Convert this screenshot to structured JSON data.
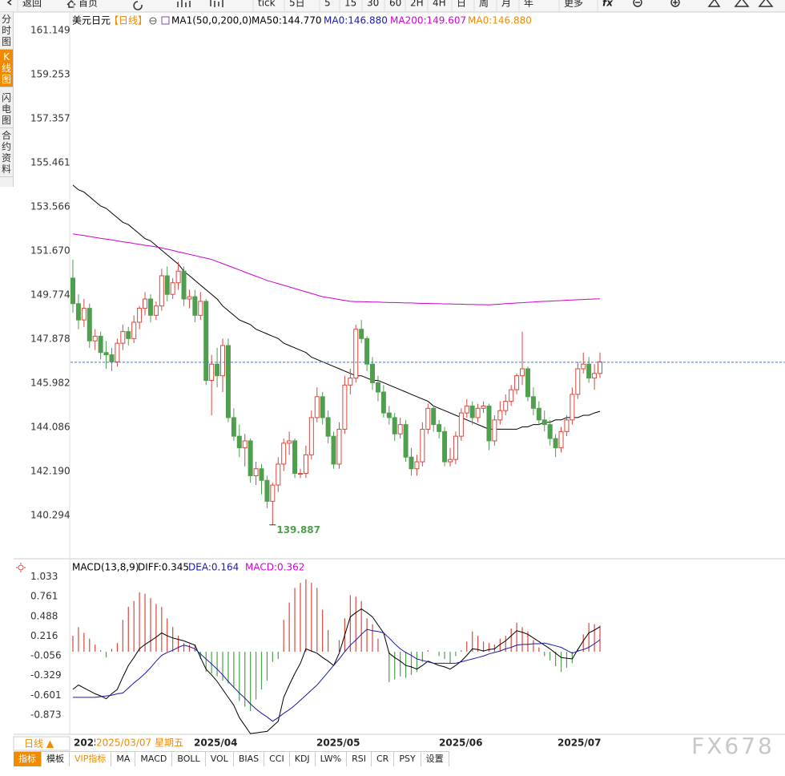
{
  "toolbar": [
    "返回",
    "首页",
    "tick",
    "5日",
    "5",
    "15",
    "30",
    "60",
    "2H",
    "4H",
    "日",
    "周",
    "月",
    "年",
    "更多",
    "fx"
  ],
  "sidebar": [
    "分时图",
    "K线图",
    "闪电图",
    "合约资料"
  ],
  "chart_data": {
    "type": "candlestick",
    "title": "美元日元",
    "period": "【日线】",
    "indicator": "MA1(50,0,200,0)",
    "legend": [
      {
        "label": "MA50:144.770",
        "color": "#000000"
      },
      {
        "label": "MA0:146.880",
        "color": "#1a1aa6"
      },
      {
        "label": "MA200:149.607",
        "color": "#d400d4"
      },
      {
        "label": "MA0:146.880",
        "color": "#f08a00"
      }
    ],
    "up_color": "#d9473f",
    "down_color": "#4f9f4f",
    "price_line": 146.88,
    "low_annotation": 139.887,
    "candles": [
      [
        150.5,
        151.3,
        149.0,
        149.4
      ],
      [
        149.4,
        149.8,
        148.3,
        148.7
      ],
      [
        148.7,
        149.6,
        148.4,
        149.2
      ],
      [
        149.2,
        149.4,
        147.5,
        147.8
      ],
      [
        147.8,
        148.3,
        147.4,
        148.0
      ],
      [
        148.0,
        148.2,
        147.0,
        147.3
      ],
      [
        147.3,
        147.8,
        146.6,
        147.2
      ],
      [
        147.2,
        147.5,
        146.5,
        146.9
      ],
      [
        146.9,
        147.9,
        146.7,
        147.7
      ],
      [
        147.7,
        148.5,
        147.4,
        148.2
      ],
      [
        148.2,
        148.4,
        147.6,
        147.9
      ],
      [
        147.9,
        148.9,
        147.7,
        148.6
      ],
      [
        148.6,
        149.3,
        148.3,
        149.2
      ],
      [
        149.2,
        149.9,
        148.9,
        149.6
      ],
      [
        149.6,
        149.8,
        148.6,
        148.9
      ],
      [
        148.9,
        149.5,
        148.7,
        149.3
      ],
      [
        149.3,
        150.9,
        149.1,
        150.6
      ],
      [
        150.6,
        151.0,
        149.5,
        149.8
      ],
      [
        149.8,
        150.5,
        149.6,
        150.3
      ],
      [
        150.3,
        151.2,
        150.0,
        150.8
      ],
      [
        150.8,
        151.0,
        149.3,
        149.6
      ],
      [
        149.6,
        150.0,
        149.2,
        149.7
      ],
      [
        149.7,
        150.0,
        148.6,
        148.9
      ],
      [
        148.9,
        149.9,
        148.7,
        149.5
      ],
      [
        149.5,
        149.6,
        145.9,
        146.1
      ],
      [
        146.1,
        147.2,
        144.6,
        146.8
      ],
      [
        146.8,
        147.5,
        145.8,
        146.3
      ],
      [
        146.3,
        147.9,
        145.6,
        147.6
      ],
      [
        147.6,
        147.9,
        144.3,
        144.5
      ],
      [
        144.5,
        144.9,
        143.5,
        143.7
      ],
      [
        143.7,
        144.2,
        142.8,
        143.2
      ],
      [
        143.2,
        143.8,
        142.4,
        143.5
      ],
      [
        143.5,
        143.6,
        141.7,
        142.0
      ],
      [
        142.0,
        142.6,
        141.6,
        142.3
      ],
      [
        142.3,
        142.5,
        141.2,
        141.8
      ],
      [
        141.8,
        142.0,
        140.6,
        140.9
      ],
      [
        140.9,
        141.7,
        139.887,
        141.6
      ],
      [
        141.6,
        142.8,
        141.3,
        142.5
      ],
      [
        142.5,
        143.6,
        142.2,
        143.4
      ],
      [
        143.4,
        143.9,
        142.9,
        143.5
      ],
      [
        143.5,
        143.6,
        141.9,
        142.1
      ],
      [
        142.1,
        142.3,
        141.9,
        142.1
      ],
      [
        142.1,
        143.3,
        141.9,
        142.9
      ],
      [
        142.9,
        144.8,
        142.7,
        144.5
      ],
      [
        144.5,
        145.8,
        144.3,
        145.4
      ],
      [
        145.4,
        145.6,
        144.2,
        144.5
      ],
      [
        144.5,
        144.8,
        143.4,
        143.7
      ],
      [
        143.7,
        143.9,
        142.3,
        142.5
      ],
      [
        142.5,
        144.3,
        142.3,
        144.0
      ],
      [
        144.0,
        146.3,
        143.8,
        145.9
      ],
      [
        145.9,
        146.6,
        145.5,
        146.2
      ],
      [
        146.2,
        148.5,
        146.0,
        148.3
      ],
      [
        148.3,
        148.7,
        147.7,
        147.9
      ],
      [
        147.9,
        148.0,
        146.5,
        146.8
      ],
      [
        146.8,
        147.1,
        145.7,
        146.0
      ],
      [
        146.0,
        146.3,
        145.2,
        145.6
      ],
      [
        145.6,
        145.9,
        144.5,
        144.7
      ],
      [
        144.7,
        145.0,
        144.2,
        144.5
      ],
      [
        144.5,
        144.7,
        143.5,
        143.8
      ],
      [
        143.8,
        144.5,
        143.6,
        144.2
      ],
      [
        144.2,
        144.4,
        142.6,
        142.8
      ],
      [
        142.8,
        143.2,
        142.0,
        142.3
      ],
      [
        142.3,
        142.9,
        142.0,
        142.6
      ],
      [
        142.6,
        144.3,
        142.4,
        144.0
      ],
      [
        144.0,
        145.1,
        143.8,
        144.9
      ],
      [
        144.9,
        145.0,
        143.9,
        144.2
      ],
      [
        144.2,
        144.4,
        143.6,
        143.9
      ],
      [
        143.9,
        144.1,
        142.4,
        142.6
      ],
      [
        142.6,
        143.2,
        142.4,
        142.7
      ],
      [
        142.7,
        143.9,
        142.5,
        143.7
      ],
      [
        143.7,
        144.9,
        143.5,
        144.7
      ],
      [
        144.7,
        145.3,
        144.5,
        145.0
      ],
      [
        145.0,
        145.2,
        144.2,
        144.5
      ],
      [
        144.5,
        145.1,
        144.3,
        144.9
      ],
      [
        144.9,
        145.2,
        144.7,
        145.0
      ],
      [
        145.0,
        145.1,
        143.1,
        143.5
      ],
      [
        143.5,
        144.6,
        143.3,
        144.4
      ],
      [
        144.4,
        145.2,
        144.2,
        144.8
      ],
      [
        144.8,
        145.5,
        144.6,
        145.2
      ],
      [
        145.2,
        145.9,
        145.0,
        145.7
      ],
      [
        145.7,
        146.4,
        145.5,
        146.3
      ],
      [
        146.3,
        148.2,
        145.9,
        146.6
      ],
      [
        146.6,
        146.7,
        145.2,
        145.4
      ],
      [
        145.4,
        145.8,
        144.6,
        144.9
      ],
      [
        144.9,
        145.2,
        144.2,
        144.4
      ],
      [
        144.4,
        144.8,
        143.9,
        144.2
      ],
      [
        144.2,
        144.4,
        143.3,
        143.6
      ],
      [
        143.6,
        143.8,
        142.8,
        143.2
      ],
      [
        143.2,
        144.1,
        143.0,
        143.9
      ],
      [
        143.9,
        144.6,
        143.7,
        144.4
      ],
      [
        144.4,
        145.8,
        144.2,
        145.5
      ],
      [
        145.5,
        146.9,
        145.3,
        146.6
      ],
      [
        146.6,
        147.3,
        146.4,
        146.8
      ],
      [
        146.8,
        147.1,
        146.0,
        146.2
      ],
      [
        146.2,
        146.8,
        145.7,
        146.4
      ],
      [
        146.4,
        147.3,
        146.2,
        146.9
      ]
    ],
    "series": [
      {
        "name": "MA50",
        "color": "#000000",
        "values": [
          154.5,
          154.3,
          154.2,
          154.0,
          153.8,
          153.6,
          153.5,
          153.3,
          153.1,
          152.9,
          152.8,
          152.6,
          152.4,
          152.2,
          152.1,
          151.9,
          151.7,
          151.5,
          151.3,
          151.1,
          150.8,
          150.6,
          150.4,
          150.2,
          150.0,
          149.8,
          149.6,
          149.3,
          149.1,
          148.9,
          148.7,
          148.6,
          148.5,
          148.3,
          148.2,
          148.1,
          148.0,
          147.9,
          147.7,
          147.6,
          147.5,
          147.4,
          147.3,
          147.1,
          147.0,
          146.9,
          146.8,
          146.7,
          146.6,
          146.5,
          146.4,
          146.3,
          146.3,
          146.2,
          146.1,
          146.1,
          146.0,
          145.9,
          145.8,
          145.7,
          145.6,
          145.5,
          145.4,
          145.3,
          145.2,
          145.0,
          144.9,
          144.8,
          144.7,
          144.6,
          144.5,
          144.4,
          144.3,
          144.2,
          144.1,
          144.0,
          144.0,
          144.0,
          144.0,
          144.0,
          144.0,
          144.1,
          144.1,
          144.2,
          144.2,
          144.3,
          144.3,
          144.4,
          144.4,
          144.5,
          144.5,
          144.5,
          144.6,
          144.6,
          144.7,
          144.77
        ]
      },
      {
        "name": "MA200",
        "color": "#cc00cc",
        "values": [
          152.4,
          152.36,
          152.33,
          152.29,
          152.25,
          152.21,
          152.18,
          152.14,
          152.1,
          152.06,
          152.03,
          151.99,
          151.95,
          151.91,
          151.88,
          151.84,
          151.8,
          151.74,
          151.69,
          151.63,
          151.58,
          151.52,
          151.47,
          151.41,
          151.36,
          151.3,
          151.21,
          151.12,
          151.03,
          150.94,
          150.85,
          150.76,
          150.67,
          150.58,
          150.49,
          150.4,
          150.33,
          150.26,
          150.19,
          150.12,
          150.05,
          149.98,
          149.91,
          149.84,
          149.77,
          149.7,
          149.66,
          149.62,
          149.58,
          149.54,
          149.5,
          149.49,
          149.49,
          149.48,
          149.47,
          149.47,
          149.46,
          149.45,
          149.45,
          149.44,
          149.43,
          149.43,
          149.42,
          149.41,
          149.41,
          149.4,
          149.4,
          149.39,
          149.39,
          149.38,
          149.38,
          149.37,
          149.37,
          149.36,
          149.36,
          149.35,
          149.37,
          149.38,
          149.4,
          149.41,
          149.43,
          149.44,
          149.46,
          149.47,
          149.49,
          149.5,
          149.51,
          149.52,
          149.53,
          149.55,
          149.56,
          149.57,
          149.58,
          149.59,
          149.6,
          149.607
        ]
      }
    ],
    "ylim": [
      138.43,
      161.77
    ],
    "yticks": [
      161.149,
      159.253,
      157.357,
      155.461,
      153.566,
      {
        "value": 151.67,
        "label": "151.670"
      },
      149.774,
      147.878,
      145.982,
      144.086,
      {
        "value": 142.19,
        "label": "142.190"
      },
      140.294
    ],
    "macd": {
      "title": "MACD(13,8,9)",
      "legend": [
        {
          "label": "DIFF:0.345",
          "color": "#000000"
        },
        {
          "label": "DEA:0.164",
          "color": "#1a1aa6"
        },
        {
          "label": "MACD:0.362",
          "color": "#d400d4"
        }
      ],
      "series": [
        {
          "name": "DIFF",
          "color": "#000000",
          "values": [
            -0.52,
            -0.46,
            -0.5,
            -0.54,
            -0.58,
            -0.61,
            -0.65,
            -0.58,
            -0.52,
            -0.35,
            -0.19,
            -0.08,
            0.04,
            0.1,
            0.15,
            0.2,
            0.26,
            0.22,
            0.19,
            0.17,
            0.15,
            0.12,
            0.09,
            -0.08,
            -0.24,
            -0.32,
            -0.41,
            -0.52,
            -0.63,
            -0.74,
            -0.91,
            -1.02,
            -1.13,
            -1.12,
            -1.11,
            -1.1,
            -1.03,
            -0.96,
            -0.63,
            -0.46,
            -0.3,
            -0.16,
            0.04,
            0.01,
            -0.02,
            -0.08,
            -0.13,
            -0.19,
            -0.02,
            0.23,
            0.48,
            0.54,
            0.59,
            0.54,
            0.48,
            0.37,
            0.26,
            -0.02,
            -0.08,
            -0.13,
            -0.19,
            -0.21,
            -0.24,
            -0.19,
            -0.13,
            -0.16,
            -0.19,
            -0.21,
            -0.24,
            -0.19,
            -0.13,
            -0.05,
            0.04,
            0.03,
            0.01,
            0.03,
            0.04,
            0.1,
            0.15,
            0.22,
            0.29,
            0.27,
            0.24,
            0.19,
            0.14,
            0.09,
            0.04,
            -0.02,
            -0.08,
            -0.09,
            -0.1,
            0.03,
            0.15,
            0.26,
            0.3,
            0.345
          ]
        },
        {
          "name": "DEA",
          "color": "#1a1aa6",
          "values": [
            -0.63,
            -0.63,
            -0.63,
            -0.63,
            -0.63,
            -0.62,
            -0.61,
            -0.6,
            -0.58,
            -0.57,
            -0.5,
            -0.43,
            -0.37,
            -0.3,
            -0.22,
            -0.13,
            -0.05,
            -0.01,
            0.02,
            0.06,
            0.09,
            0.07,
            0.04,
            -0.03,
            -0.1,
            -0.17,
            -0.24,
            -0.32,
            -0.41,
            -0.49,
            -0.57,
            -0.64,
            -0.72,
            -0.79,
            -0.85,
            -0.9,
            -0.96,
            -0.91,
            -0.85,
            -0.8,
            -0.74,
            -0.67,
            -0.6,
            -0.53,
            -0.46,
            -0.37,
            -0.28,
            -0.19,
            -0.1,
            0,
            0.09,
            0.16,
            0.24,
            0.31,
            0.29,
            0.28,
            0.26,
            0.19,
            0.11,
            0.04,
            -0.01,
            -0.05,
            -0.1,
            -0.12,
            -0.14,
            -0.16,
            -0.16,
            -0.16,
            -0.16,
            -0.16,
            -0.14,
            -0.12,
            -0.1,
            -0.08,
            -0.06,
            -0.03,
            -0.01,
            0.01,
            0.04,
            0.06,
            0.09,
            0.1,
            0.1,
            0.11,
            0.11,
            0.12,
            0.1,
            0.08,
            0.06,
            0.02,
            -0.02,
            0.01,
            0.03,
            0.06,
            0.11,
            0.164
          ]
        }
      ],
      "histogram": [
        0.22,
        0.34,
        0.26,
        0.18,
        0.1,
        0.02,
        -0.08,
        0.04,
        0.12,
        0.44,
        0.62,
        0.7,
        0.82,
        0.8,
        0.74,
        0.66,
        0.62,
        0.46,
        0.34,
        0.22,
        0.12,
        0.1,
        0.1,
        -0.1,
        -0.28,
        -0.3,
        -0.34,
        -0.4,
        -0.44,
        -0.5,
        -0.68,
        -0.76,
        -0.82,
        -0.66,
        -0.52,
        -0.4,
        -0.14,
        -0.1,
        0.44,
        0.68,
        0.88,
        0.95,
        1.0,
        0.95,
        0.88,
        0.58,
        0.3,
        0,
        0.16,
        0.46,
        0.78,
        0.76,
        0.7,
        0.46,
        0.38,
        0.18,
        0,
        -0.42,
        -0.38,
        -0.34,
        -0.36,
        -0.32,
        -0.28,
        -0.14,
        0.02,
        0,
        -0.06,
        -0.1,
        -0.16,
        -0.06,
        0.02,
        0.14,
        0.28,
        0.22,
        0.14,
        0.12,
        0.1,
        0.18,
        0.22,
        0.32,
        0.4,
        0.34,
        0.28,
        0.16,
        0.06,
        -0.06,
        -0.12,
        -0.2,
        -0.28,
        -0.22,
        -0.16,
        0.04,
        0.24,
        0.4,
        0.38,
        0.362
      ],
      "ylim": [
        -1.14,
        1.25
      ],
      "yticks": [
        1.033,
        0.761,
        0.488,
        0.216,
        -0.056,
        -0.329,
        -0.601,
        -0.873
      ]
    },
    "x_labels": [
      "2025",
      "2025/04",
      "2025/05",
      "2025/06",
      "2025/07"
    ],
    "crosshair_date": "2025/03/07 星期五",
    "period_button": "日线 ▲"
  },
  "tabs": [
    "指标",
    "模板",
    "VIP指标",
    "MA",
    "MACD",
    "BOLL",
    "VOL",
    "BIAS",
    "CCI",
    "KDJ",
    "LW%",
    "RSI",
    "CR",
    "PSY",
    "设置"
  ],
  "watermark": "FX678"
}
